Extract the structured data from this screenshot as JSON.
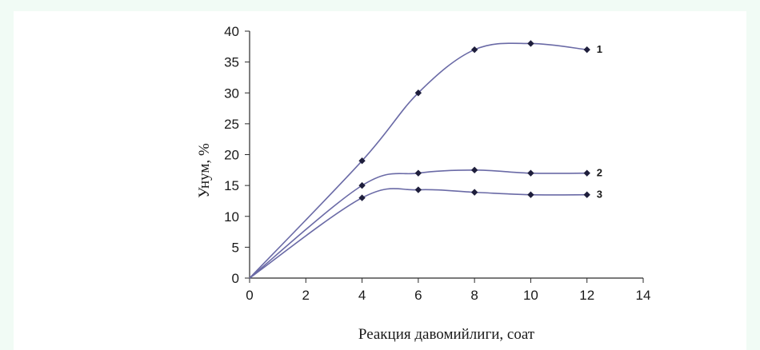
{
  "chart_data": {
    "type": "line",
    "title": "",
    "xlabel": "Реакция давомийлиги, соат",
    "ylabel": "Унум, %",
    "xlim": [
      0,
      14
    ],
    "ylim": [
      0,
      40
    ],
    "x_ticks": [
      "0",
      "2",
      "4",
      "6",
      "8",
      "10",
      "12",
      "14"
    ],
    "y_ticks": [
      "0",
      "5",
      "10",
      "15",
      "20",
      "25",
      "30",
      "35",
      "40"
    ],
    "grid": false,
    "line_color": "#6a6aa6",
    "marker_color": "#1e1e3c",
    "series": [
      {
        "name": "1",
        "x": [
          0,
          4,
          6,
          8,
          10,
          12
        ],
        "y": [
          0,
          19,
          30,
          37,
          38,
          37
        ]
      },
      {
        "name": "2",
        "x": [
          0,
          4,
          6,
          8,
          10,
          12
        ],
        "y": [
          0,
          15,
          17,
          17.5,
          17,
          17
        ]
      },
      {
        "name": "3",
        "x": [
          0,
          4,
          6,
          8,
          10,
          12
        ],
        "y": [
          0,
          13,
          14.3,
          13.9,
          13.5,
          13.5
        ]
      }
    ]
  }
}
